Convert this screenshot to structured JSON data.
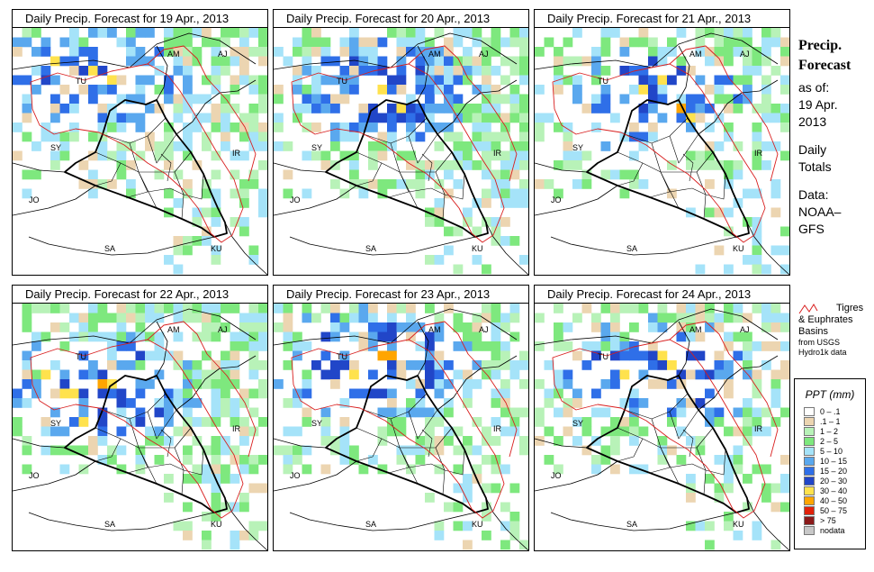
{
  "panels": [
    {
      "title": "Daily Precip. Forecast for  19 Apr., 2013",
      "seed": 11,
      "cov": 0.6,
      "intensity": 0.45
    },
    {
      "title": "Daily Precip. Forecast for  20 Apr., 2013",
      "seed": 23,
      "cov": 0.7,
      "intensity": 0.55
    },
    {
      "title": "Daily Precip. Forecast for  21 Apr., 2013",
      "seed": 37,
      "cov": 0.55,
      "intensity": 0.5
    },
    {
      "title": "Daily Precip. Forecast for  22 Apr., 2013",
      "seed": 41,
      "cov": 0.65,
      "intensity": 0.55
    },
    {
      "title": "Daily Precip. Forecast for  23 Apr., 2013",
      "seed": 53,
      "cov": 0.6,
      "intensity": 0.6
    },
    {
      "title": "Daily Precip. Forecast for  24 Apr., 2013",
      "seed": 67,
      "cov": 0.55,
      "intensity": 0.5
    }
  ],
  "country_labels": [
    "AM",
    "AJ",
    "TU",
    "SY",
    "IR",
    "JO",
    "SA",
    "KU"
  ],
  "side": {
    "heading1": "Precip.",
    "heading2": "Forecast",
    "as_of": "as of:",
    "date1": "19 Apr.",
    "date2": "2013",
    "daily": "Daily",
    "totals": "Totals",
    "data": "Data:",
    "noaa": "NOAA–",
    "gfs": "GFS"
  },
  "basin": {
    "line1": "Tigres",
    "line2": "& Euphrates",
    "line3": "Basins",
    "line4": "from USGS",
    "line5": "Hydro1k data"
  },
  "legend": {
    "title": "PPT (mm)",
    "items": [
      {
        "label": "0 – .1",
        "color": "#ffffff"
      },
      {
        "label": ".1 – 1",
        "color": "#ecd5b1"
      },
      {
        "label": "1 – 2",
        "color": "#b8f2b8"
      },
      {
        "label": "2 – 5",
        "color": "#7ee87e"
      },
      {
        "label": "5 – 10",
        "color": "#a5e3f9"
      },
      {
        "label": "10 – 15",
        "color": "#5aa8ee"
      },
      {
        "label": "15 – 20",
        "color": "#2f6fe8"
      },
      {
        "label": "20 – 30",
        "color": "#2146c8"
      },
      {
        "label": "30 – 40",
        "color": "#ffe24d"
      },
      {
        "label": "40 – 50",
        "color": "#ffa500"
      },
      {
        "label": "50 – 75",
        "color": "#e2220a"
      },
      {
        "label": "> 75",
        "color": "#8b1a1a"
      },
      {
        "label": "nodata",
        "color": "#c8c8c8"
      }
    ]
  }
}
